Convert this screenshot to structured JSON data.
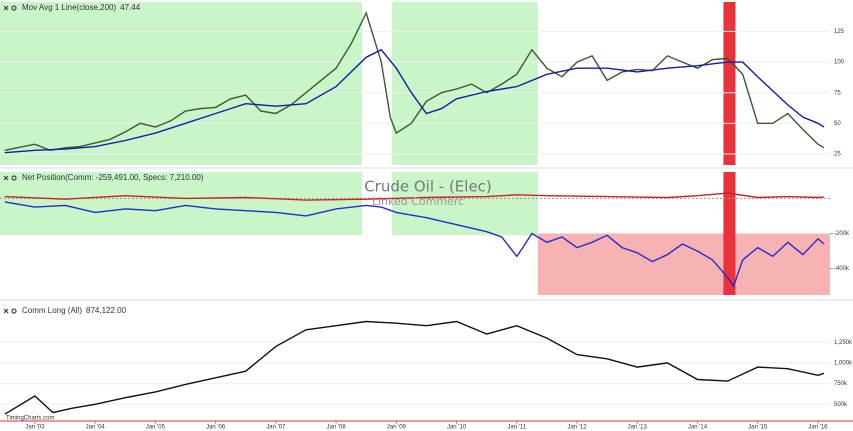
{
  "chart_data": [
    {
      "type": "line",
      "label": "Mov Avg 1 Line(close,200)",
      "label_value": "47.44",
      "label_color": "#1a1aa8",
      "label_value_color": "#2a9a2a",
      "xlim": [
        2002.42,
        2016.2
      ],
      "ylim": [
        16,
        149
      ],
      "yticks": [
        25,
        50,
        75,
        100,
        125
      ],
      "grid": true,
      "highlights": [
        {
          "x": [
            2002.42,
            2008.43
          ],
          "color": "#c9f5c9"
        },
        {
          "x": [
            2008.93,
            2011.35
          ],
          "color": "#c9f5c9"
        },
        {
          "x": [
            2014.43,
            2014.63
          ],
          "color": "#e8323c"
        }
      ],
      "series": [
        {
          "color": "#3b5a2c",
          "x": [
            2002.5,
            2003.0,
            2003.25,
            2003.5,
            2003.75,
            2004.0,
            2004.25,
            2004.5,
            2004.75,
            2005.0,
            2005.25,
            2005.5,
            2005.75,
            2006.0,
            2006.25,
            2006.5,
            2006.75,
            2007.0,
            2007.25,
            2007.5,
            2007.75,
            2008.0,
            2008.25,
            2008.5,
            2008.75,
            2008.9,
            2009.0,
            2009.25,
            2009.5,
            2009.75,
            2010.0,
            2010.25,
            2010.5,
            2010.75,
            2011.0,
            2011.25,
            2011.5,
            2011.75,
            2012.0,
            2012.25,
            2012.5,
            2012.75,
            2013.0,
            2013.25,
            2013.5,
            2013.75,
            2014.0,
            2014.25,
            2014.5,
            2014.75,
            2015.0,
            2015.25,
            2015.5,
            2015.75,
            2016.0,
            2016.1
          ],
          "values": [
            28,
            33,
            28,
            30,
            31,
            34,
            37,
            43,
            50,
            47,
            52,
            60,
            62,
            63,
            70,
            73,
            60,
            58,
            65,
            75,
            85,
            95,
            115,
            140,
            100,
            55,
            42,
            50,
            68,
            75,
            78,
            82,
            75,
            82,
            90,
            110,
            95,
            88,
            100,
            105,
            85,
            92,
            94,
            93,
            105,
            100,
            95,
            102,
            103,
            90,
            50,
            50,
            58,
            45,
            33,
            30
          ]
        },
        {
          "color": "#1a1aa8",
          "x": [
            2002.5,
            2003.0,
            2003.5,
            2004.0,
            2004.5,
            2005.0,
            2005.5,
            2006.0,
            2006.5,
            2007.0,
            2007.5,
            2008.0,
            2008.5,
            2008.75,
            2009.0,
            2009.25,
            2009.5,
            2009.75,
            2010.0,
            2010.5,
            2011.0,
            2011.5,
            2012.0,
            2012.5,
            2013.0,
            2013.5,
            2014.0,
            2014.5,
            2014.75,
            2015.0,
            2015.5,
            2015.75,
            2016.0,
            2016.1
          ],
          "values": [
            26,
            28,
            29,
            31,
            36,
            42,
            50,
            58,
            66,
            64,
            66,
            80,
            104,
            110,
            95,
            75,
            58,
            62,
            70,
            76,
            80,
            90,
            95,
            95,
            92,
            95,
            97,
            100,
            100,
            88,
            65,
            55,
            50,
            47
          ]
        }
      ]
    },
    {
      "type": "line",
      "label": "Net Position(Comm: -259,491.00, Specs: 7,210.00)",
      "label_color": "#aa2222",
      "xlim": [
        2002.42,
        2016.2
      ],
      "ylim": [
        -550000,
        150000
      ],
      "yticks": [
        {
          "value": -200000,
          "label": "-200k"
        },
        {
          "value": -400000,
          "label": "-400k"
        }
      ],
      "reference_line": 0,
      "highlights": [
        {
          "x": [
            2002.42,
            2008.43
          ],
          "y": [
            -210000,
            150000
          ],
          "color": "#c9f5c9"
        },
        {
          "x": [
            2008.93,
            2011.35
          ],
          "y": [
            -210000,
            150000
          ],
          "color": "#c9f5c9"
        },
        {
          "x": [
            2011.35,
            2016.2
          ],
          "y": [
            -550000,
            -200000
          ],
          "color": "#f7b3b3"
        },
        {
          "x": [
            2014.43,
            2014.63
          ],
          "y": [
            -550000,
            150000
          ],
          "color": "#e8323c"
        }
      ],
      "series": [
        {
          "color": "#2a2acc",
          "x": [
            2002.5,
            2003.0,
            2003.5,
            2004.0,
            2004.5,
            2005.0,
            2005.5,
            2006.0,
            2006.5,
            2007.0,
            2007.5,
            2008.0,
            2008.5,
            2008.75,
            2009.0,
            2009.5,
            2010.0,
            2010.5,
            2010.75,
            2011.0,
            2011.1,
            2011.25,
            2011.5,
            2011.75,
            2012.0,
            2012.25,
            2012.5,
            2012.75,
            2013.0,
            2013.25,
            2013.5,
            2013.75,
            2014.0,
            2014.25,
            2014.5,
            2014.6,
            2014.75,
            2015.0,
            2015.25,
            2015.5,
            2015.75,
            2016.0,
            2016.1
          ],
          "values": [
            -20000,
            -50000,
            -40000,
            -80000,
            -60000,
            -70000,
            -40000,
            -60000,
            -70000,
            -80000,
            -100000,
            -60000,
            -40000,
            -50000,
            -80000,
            -110000,
            -150000,
            -190000,
            -220000,
            -330000,
            -280000,
            -200000,
            -250000,
            -220000,
            -280000,
            -250000,
            -210000,
            -280000,
            -310000,
            -360000,
            -320000,
            -260000,
            -300000,
            -350000,
            -450000,
            -500000,
            -350000,
            -280000,
            -330000,
            -250000,
            -320000,
            -230000,
            -259491
          ]
        },
        {
          "color": "#cc2222",
          "x": [
            2002.5,
            2003.5,
            2004.5,
            2005.5,
            2006.5,
            2007.5,
            2008.5,
            2009.5,
            2010.5,
            2011.0,
            2011.5,
            2012.5,
            2013.5,
            2014.0,
            2014.5,
            2015.0,
            2015.5,
            2016.0,
            2016.1
          ],
          "values": [
            10000,
            -5000,
            15000,
            0,
            5000,
            -10000,
            -5000,
            5000,
            10000,
            20000,
            15000,
            10000,
            5000,
            15000,
            30000,
            5000,
            10000,
            5000,
            7210
          ]
        }
      ]
    },
    {
      "type": "line",
      "label": "Comm Long (All)",
      "label_value": "874,122.00",
      "label_color": "#2a9a2a",
      "label_value_color": "#2a9a2a",
      "xlim": [
        2002.42,
        2016.2
      ],
      "ylim": [
        310000,
        1700000
      ],
      "yticks": [
        {
          "value": 500000,
          "label": "500k"
        },
        {
          "value": 750000,
          "label": "750k"
        },
        {
          "value": 1000000,
          "label": "1,000k"
        },
        {
          "value": 1250000,
          "label": "1,250k"
        }
      ],
      "xticks": [
        {
          "value": 2003,
          "label": "Jan '03"
        },
        {
          "value": 2004,
          "label": "Jan '04"
        },
        {
          "value": 2005,
          "label": "Jan '05"
        },
        {
          "value": 2006,
          "label": "Jan '06"
        },
        {
          "value": 2007,
          "label": "Jan '07"
        },
        {
          "value": 2008,
          "label": "Jan '08"
        },
        {
          "value": 2009,
          "label": "Jan '09"
        },
        {
          "value": 2010,
          "label": "Jan '10"
        },
        {
          "value": 2011,
          "label": "Jan '11"
        },
        {
          "value": 2012,
          "label": "Jan '12"
        },
        {
          "value": 2013,
          "label": "Jan '13"
        },
        {
          "value": 2014,
          "label": "Jan '14"
        },
        {
          "value": 2015,
          "label": "Jan '15"
        },
        {
          "value": 2016,
          "label": "Jan '16"
        }
      ],
      "grid": true,
      "series": [
        {
          "color": "#111111",
          "x": [
            2002.5,
            2003.0,
            2003.3,
            2003.6,
            2004.0,
            2004.5,
            2005.0,
            2005.5,
            2006.0,
            2006.5,
            2007.0,
            2007.5,
            2008.0,
            2008.5,
            2009.0,
            2009.5,
            2010.0,
            2010.5,
            2011.0,
            2011.5,
            2012.0,
            2012.5,
            2013.0,
            2013.5,
            2014.0,
            2014.5,
            2015.0,
            2015.5,
            2016.0,
            2016.1
          ],
          "values": [
            380000,
            600000,
            400000,
            450000,
            500000,
            580000,
            650000,
            740000,
            820000,
            900000,
            1200000,
            1400000,
            1450000,
            1500000,
            1480000,
            1450000,
            1500000,
            1350000,
            1450000,
            1300000,
            1100000,
            1050000,
            950000,
            1000000,
            800000,
            780000,
            950000,
            930000,
            850000,
            874122
          ]
        }
      ]
    }
  ],
  "watermark": {
    "title": "Crude Oil - (Elec)",
    "subtitle": "Linked Commerc"
  },
  "footer": "TimingCharts.com"
}
